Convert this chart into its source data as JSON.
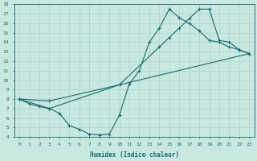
{
  "xlabel": "Humidex (Indice chaleur)",
  "xlim": [
    -0.5,
    23.5
  ],
  "ylim": [
    4,
    18
  ],
  "xticks": [
    0,
    1,
    2,
    3,
    4,
    5,
    6,
    7,
    8,
    9,
    10,
    11,
    12,
    13,
    14,
    15,
    16,
    17,
    18,
    19,
    20,
    21,
    22,
    23
  ],
  "yticks": [
    4,
    5,
    6,
    7,
    8,
    9,
    10,
    11,
    12,
    13,
    14,
    15,
    16,
    17,
    18
  ],
  "bg_color": "#c8e8e0",
  "grid_color": "#b0d8d0",
  "line_color": "#1a6b6b",
  "line1_x": [
    0,
    1,
    2,
    3,
    4,
    5,
    6,
    7,
    8,
    9,
    10,
    11,
    12,
    13,
    14,
    15,
    16,
    17,
    18,
    19,
    20,
    21,
    22,
    23
  ],
  "line1_y": [
    8.0,
    7.5,
    7.2,
    7.0,
    6.5,
    5.2,
    4.8,
    4.3,
    4.2,
    4.3,
    6.3,
    9.6,
    11.0,
    14.0,
    15.5,
    17.5,
    16.6,
    16.0,
    15.2,
    14.2,
    14.0,
    13.5,
    13.2,
    12.8
  ],
  "line2_x": [
    0,
    3,
    10,
    23
  ],
  "line2_y": [
    8.0,
    7.8,
    9.5,
    12.8
  ],
  "line3_x": [
    0,
    3,
    10,
    14,
    15,
    16,
    17,
    18,
    19,
    20,
    21,
    22,
    23
  ],
  "line3_y": [
    8.0,
    7.0,
    9.5,
    13.5,
    14.5,
    15.5,
    16.5,
    17.5,
    17.5,
    14.2,
    14.0,
    13.2,
    12.8
  ]
}
